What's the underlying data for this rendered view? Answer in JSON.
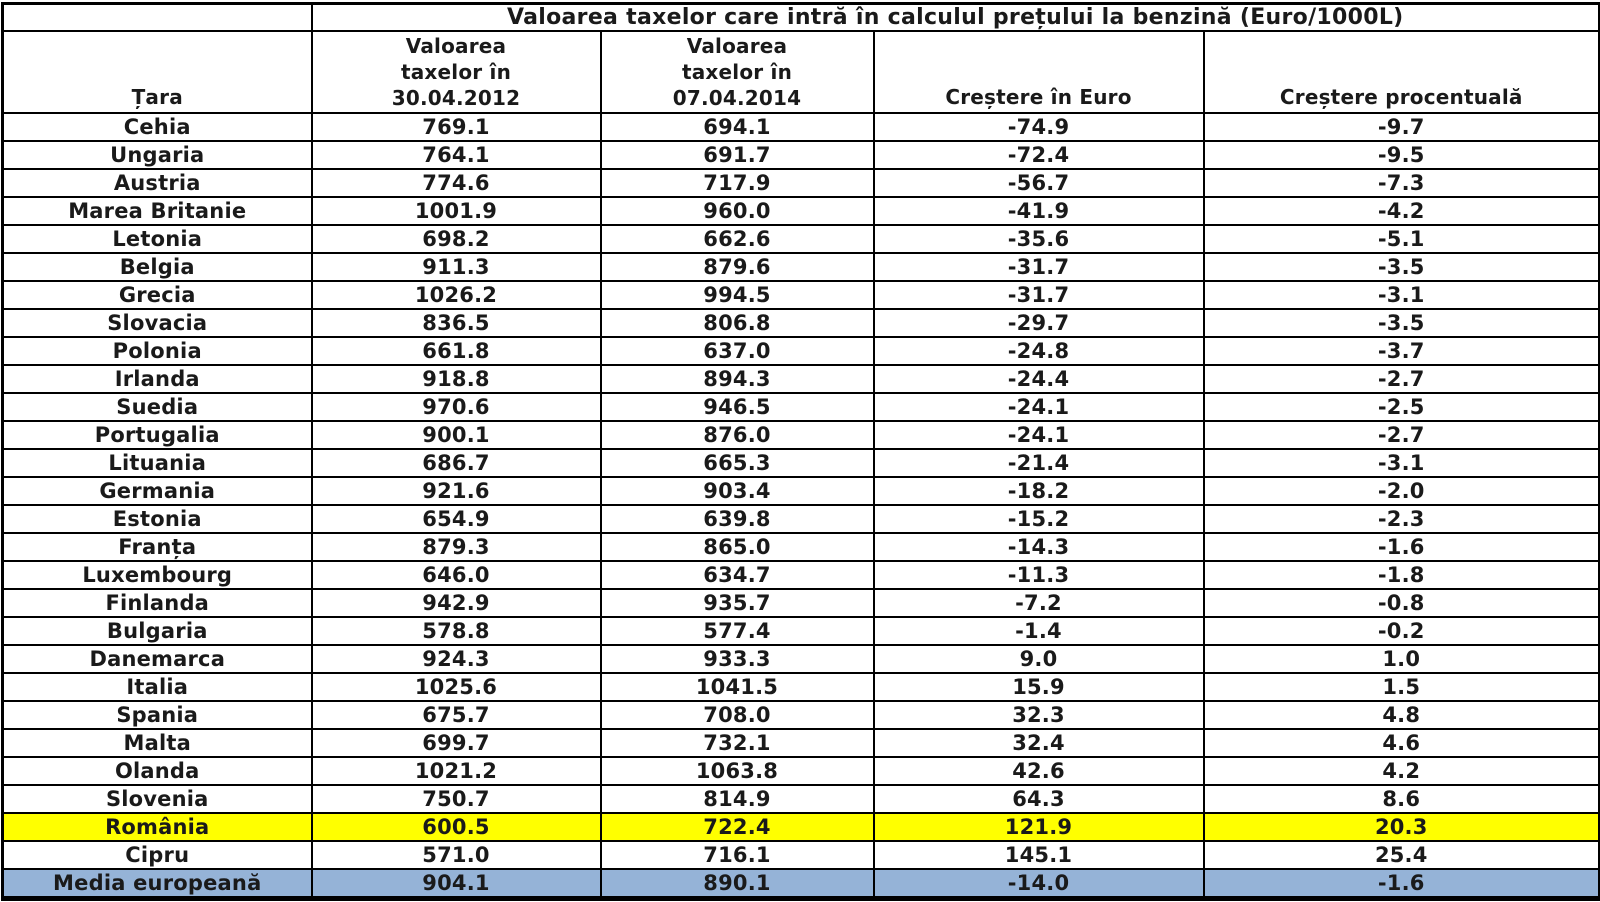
{
  "colors": {
    "highlight_yellow": "#ffff00",
    "highlight_blue": "#95b3d7",
    "border": "#000000",
    "text": "#1a1a1a",
    "background": "#ffffff"
  },
  "chart_data": {
    "type": "table",
    "title": "Valoarea taxelor care intră în calculul prețului la benzină (Euro/1000L)",
    "columns": [
      "Țara",
      "Valoarea taxelor în 30.04.2012",
      "Valoarea taxelor în 07.04.2014",
      "Creștere în Euro",
      "Creștere procentuală"
    ],
    "header_lines": {
      "col2": [
        "Valoarea",
        "taxelor în",
        "30.04.2012"
      ],
      "col3": [
        "Valoarea",
        "taxelor în",
        "07.04.2014"
      ]
    },
    "legend_note": "rows highlighted: România = yellow, Media europeană = blue",
    "rows": [
      {
        "tara": "Cehia",
        "taxe_2012": "769.1",
        "taxe_2014": "694.1",
        "crestere_euro": "-74.9",
        "crestere_pct": "-9.7",
        "highlight": ""
      },
      {
        "tara": "Ungaria",
        "taxe_2012": "764.1",
        "taxe_2014": "691.7",
        "crestere_euro": "-72.4",
        "crestere_pct": "-9.5",
        "highlight": ""
      },
      {
        "tara": "Austria",
        "taxe_2012": "774.6",
        "taxe_2014": "717.9",
        "crestere_euro": "-56.7",
        "crestere_pct": "-7.3",
        "highlight": ""
      },
      {
        "tara": "Marea Britanie",
        "taxe_2012": "1001.9",
        "taxe_2014": "960.0",
        "crestere_euro": "-41.9",
        "crestere_pct": "-4.2",
        "highlight": ""
      },
      {
        "tara": "Letonia",
        "taxe_2012": "698.2",
        "taxe_2014": "662.6",
        "crestere_euro": "-35.6",
        "crestere_pct": "-5.1",
        "highlight": ""
      },
      {
        "tara": "Belgia",
        "taxe_2012": "911.3",
        "taxe_2014": "879.6",
        "crestere_euro": "-31.7",
        "crestere_pct": "-3.5",
        "highlight": ""
      },
      {
        "tara": "Grecia",
        "taxe_2012": "1026.2",
        "taxe_2014": "994.5",
        "crestere_euro": "-31.7",
        "crestere_pct": "-3.1",
        "highlight": ""
      },
      {
        "tara": "Slovacia",
        "taxe_2012": "836.5",
        "taxe_2014": "806.8",
        "crestere_euro": "-29.7",
        "crestere_pct": "-3.5",
        "highlight": ""
      },
      {
        "tara": "Polonia",
        "taxe_2012": "661.8",
        "taxe_2014": "637.0",
        "crestere_euro": "-24.8",
        "crestere_pct": "-3.7",
        "highlight": ""
      },
      {
        "tara": "Irlanda",
        "taxe_2012": "918.8",
        "taxe_2014": "894.3",
        "crestere_euro": "-24.4",
        "crestere_pct": "-2.7",
        "highlight": ""
      },
      {
        "tara": "Suedia",
        "taxe_2012": "970.6",
        "taxe_2014": "946.5",
        "crestere_euro": "-24.1",
        "crestere_pct": "-2.5",
        "highlight": ""
      },
      {
        "tara": "Portugalia",
        "taxe_2012": "900.1",
        "taxe_2014": "876.0",
        "crestere_euro": "-24.1",
        "crestere_pct": "-2.7",
        "highlight": ""
      },
      {
        "tara": "Lituania",
        "taxe_2012": "686.7",
        "taxe_2014": "665.3",
        "crestere_euro": "-21.4",
        "crestere_pct": "-3.1",
        "highlight": ""
      },
      {
        "tara": "Germania",
        "taxe_2012": "921.6",
        "taxe_2014": "903.4",
        "crestere_euro": "-18.2",
        "crestere_pct": "-2.0",
        "highlight": ""
      },
      {
        "tara": "Estonia",
        "taxe_2012": "654.9",
        "taxe_2014": "639.8",
        "crestere_euro": "-15.2",
        "crestere_pct": "-2.3",
        "highlight": ""
      },
      {
        "tara": "Franța",
        "taxe_2012": "879.3",
        "taxe_2014": "865.0",
        "crestere_euro": "-14.3",
        "crestere_pct": "-1.6",
        "highlight": ""
      },
      {
        "tara": "Luxembourg",
        "taxe_2012": "646.0",
        "taxe_2014": "634.7",
        "crestere_euro": "-11.3",
        "crestere_pct": "-1.8",
        "highlight": ""
      },
      {
        "tara": "Finlanda",
        "taxe_2012": "942.9",
        "taxe_2014": "935.7",
        "crestere_euro": "-7.2",
        "crestere_pct": "-0.8",
        "highlight": ""
      },
      {
        "tara": "Bulgaria",
        "taxe_2012": "578.8",
        "taxe_2014": "577.4",
        "crestere_euro": "-1.4",
        "crestere_pct": "-0.2",
        "highlight": ""
      },
      {
        "tara": "Danemarca",
        "taxe_2012": "924.3",
        "taxe_2014": "933.3",
        "crestere_euro": "9.0",
        "crestere_pct": "1.0",
        "highlight": ""
      },
      {
        "tara": "Italia",
        "taxe_2012": "1025.6",
        "taxe_2014": "1041.5",
        "crestere_euro": "15.9",
        "crestere_pct": "1.5",
        "highlight": ""
      },
      {
        "tara": "Spania",
        "taxe_2012": "675.7",
        "taxe_2014": "708.0",
        "crestere_euro": "32.3",
        "crestere_pct": "4.8",
        "highlight": ""
      },
      {
        "tara": "Malta",
        "taxe_2012": "699.7",
        "taxe_2014": "732.1",
        "crestere_euro": "32.4",
        "crestere_pct": "4.6",
        "highlight": ""
      },
      {
        "tara": "Olanda",
        "taxe_2012": "1021.2",
        "taxe_2014": "1063.8",
        "crestere_euro": "42.6",
        "crestere_pct": "4.2",
        "highlight": ""
      },
      {
        "tara": "Slovenia",
        "taxe_2012": "750.7",
        "taxe_2014": "814.9",
        "crestere_euro": "64.3",
        "crestere_pct": "8.6",
        "highlight": ""
      },
      {
        "tara": "România",
        "taxe_2012": "600.5",
        "taxe_2014": "722.4",
        "crestere_euro": "121.9",
        "crestere_pct": "20.3",
        "highlight": "yellow"
      },
      {
        "tara": "Cipru",
        "taxe_2012": "571.0",
        "taxe_2014": "716.1",
        "crestere_euro": "145.1",
        "crestere_pct": "25.4",
        "highlight": ""
      },
      {
        "tara": "Media europeană",
        "taxe_2012": "904.1",
        "taxe_2014": "890.1",
        "crestere_euro": "-14.0",
        "crestere_pct": "-1.6",
        "highlight": "blue"
      }
    ]
  }
}
